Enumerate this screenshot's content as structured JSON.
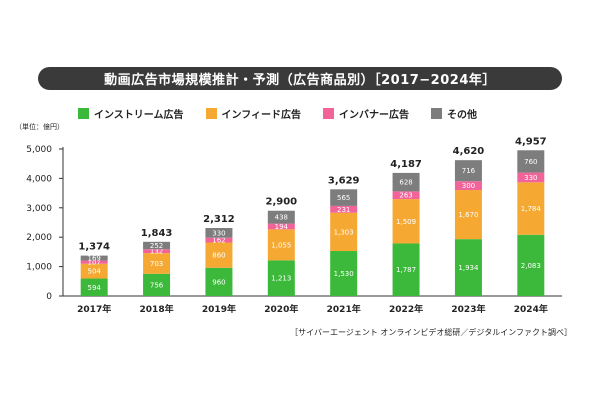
{
  "title": "動画広告市場規模推計・予測（広告商品別）［2017−2024年］",
  "source": "［サイバーエージェント オンラインビデオ総研／デジタルインファクト調べ］",
  "colors": {
    "instream": "#3cb93a",
    "infeed": "#f5a933",
    "inbanner": "#f2639a",
    "other": "#7d7d7d"
  },
  "chart_data": {
    "type": "bar",
    "stacked": true,
    "unit_label": "（単位：億円）",
    "categories": [
      "2017年",
      "2018年",
      "2019年",
      "2020年",
      "2021年",
      "2022年",
      "2023年",
      "2024年"
    ],
    "series": [
      {
        "name": "インストリーム広告",
        "key": "instream",
        "values": [
          594,
          756,
          960,
          1213,
          1530,
          1787,
          1934,
          2083
        ],
        "labels": [
          "594",
          "756",
          "960",
          "1,213",
          "1,530",
          "1,787",
          "1,934",
          "2,083"
        ]
      },
      {
        "name": "インフィード広告",
        "key": "infeed",
        "values": [
          504,
          703,
          860,
          1055,
          1303,
          1509,
          1670,
          1784
        ],
        "labels": [
          "504",
          "703",
          "860",
          "1,055",
          "1,303",
          "1,509",
          "1,670",
          "1,784"
        ]
      },
      {
        "name": "インバナー広告",
        "key": "inbanner",
        "values": [
          107,
          132,
          162,
          194,
          231,
          263,
          300,
          330
        ],
        "labels": [
          "107",
          "132",
          "162",
          "194",
          "231",
          "263",
          "300",
          "330"
        ]
      },
      {
        "name": "その他",
        "key": "other",
        "values": [
          169,
          252,
          330,
          438,
          565,
          628,
          716,
          760
        ],
        "labels": [
          "169",
          "252",
          "330",
          "438",
          "565",
          "628",
          "716",
          "760"
        ]
      }
    ],
    "totals": [
      "1,374",
      "1,843",
      "2,312",
      "2,900",
      "3,629",
      "4,187",
      "4,620",
      "4,957"
    ],
    "yticks": [
      "0",
      "1,000",
      "2,000",
      "3,000",
      "4,000",
      "5,000"
    ],
    "ylim": [
      0,
      5000
    ],
    "grid": false,
    "legend_position": "top"
  }
}
